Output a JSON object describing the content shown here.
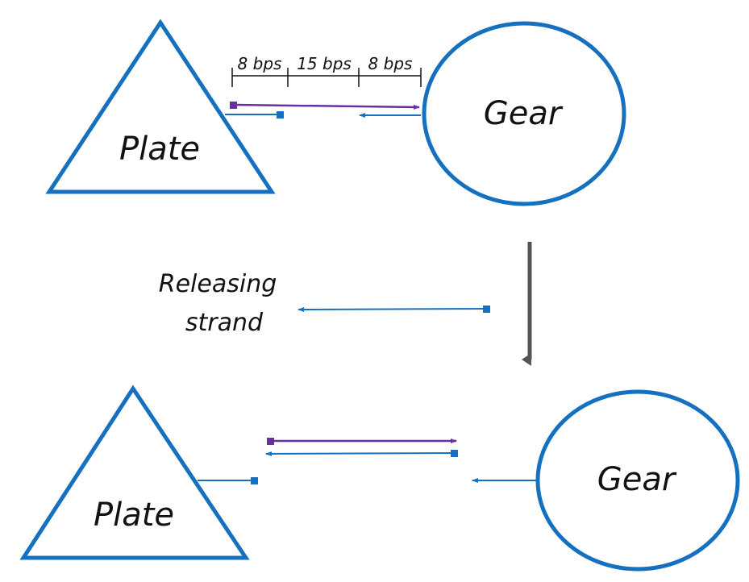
{
  "top": {
    "plate_label": "Plate",
    "gear_label": "Gear",
    "segments": [
      "8 bps",
      "15 bps",
      "8 bps"
    ]
  },
  "middle": {
    "releasing_line1": "Releasing",
    "releasing_line2": "strand"
  },
  "bottom": {
    "plate_label": "Plate",
    "gear_label": "Gear"
  },
  "colors": {
    "shape_outline": "#1570c0",
    "strand_blue": "#1570c0",
    "strand_purple": "#6a2fa0",
    "process_arrow": "#555555",
    "text": "#111111"
  }
}
